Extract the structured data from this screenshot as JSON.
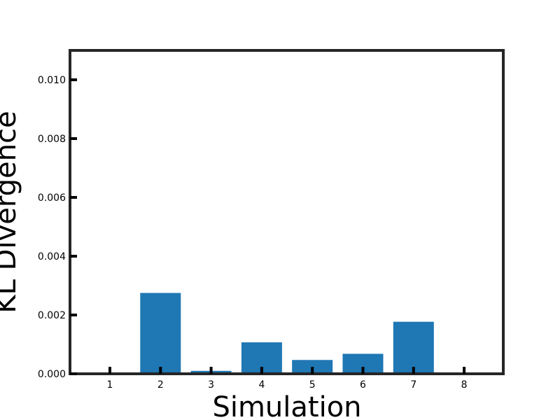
{
  "chart_data": {
    "type": "bar",
    "title": "",
    "xlabel": "Simulation",
    "ylabel": "KL Divergence",
    "categories": [
      "1",
      "2",
      "3",
      "4",
      "5",
      "6",
      "7",
      "8"
    ],
    "values": [
      0.0,
      0.00275,
      0.0001,
      0.00107,
      0.00047,
      0.00068,
      0.00177,
      0.0
    ],
    "ylim": [
      0.0,
      0.011
    ],
    "yticks": [
      "0.000",
      "0.002",
      "0.004",
      "0.006",
      "0.008",
      "0.010"
    ],
    "grid": false,
    "legend": "none",
    "bar_color": "#1f77b4",
    "frame_color": "#262626"
  }
}
